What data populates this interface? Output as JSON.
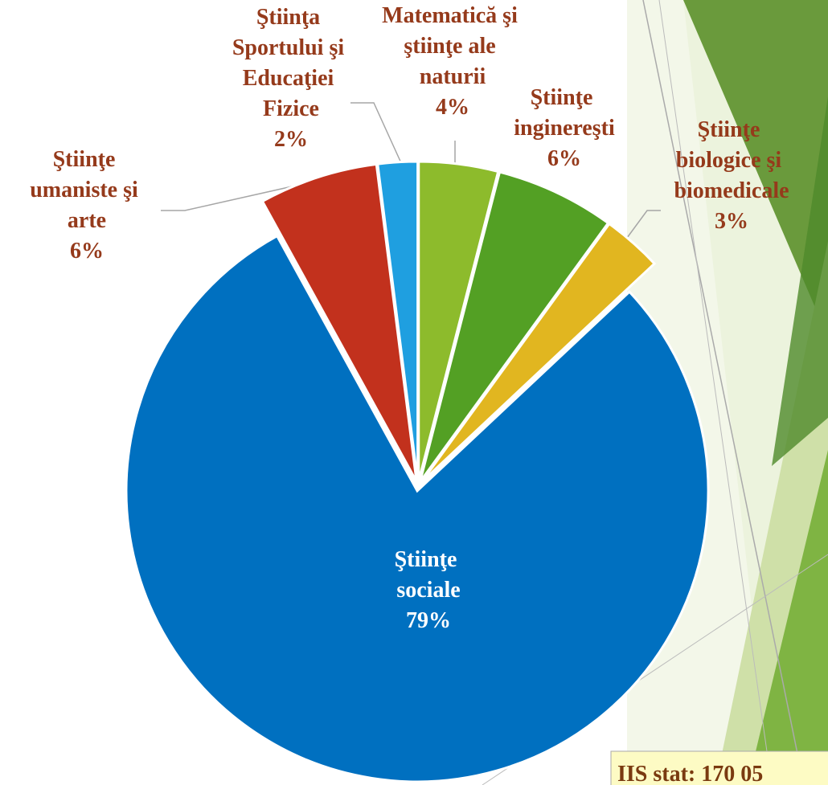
{
  "chart_data": {
    "type": "pie",
    "categories": [
      "Matematică şi ştiinţe ale naturii",
      "Ştiinţe inginereşti",
      "Ştiinţe biologice şi biomedicale",
      "Ştiinţe sociale",
      "Ştiinţe umaniste şi arte",
      "Ştiinţa Sportului şi Educaţiei Fizice"
    ],
    "values": [
      4,
      6,
      3,
      79,
      6,
      2
    ],
    "value_labels": [
      "4%",
      "6%",
      "3%",
      "79%",
      "6%",
      "2%"
    ],
    "colors": [
      "#8dbb2c",
      "#53a024",
      "#e1b620",
      "#0070c0",
      "#c2311d",
      "#1f9fe0"
    ],
    "annotation": "IIS stat: 170 05"
  }
}
